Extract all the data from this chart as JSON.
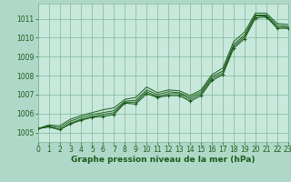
{
  "title": "Graphe pression niveau de la mer (hPa)",
  "background_color": "#b0d8c8",
  "plot_bg_color": "#c8e8dc",
  "grid_color": "#80b898",
  "line_color": "#1a5c1a",
  "xlim": [
    0,
    23
  ],
  "ylim": [
    1004.5,
    1011.8
  ],
  "xticks": [
    0,
    1,
    2,
    3,
    4,
    5,
    6,
    7,
    8,
    9,
    10,
    11,
    12,
    13,
    14,
    15,
    16,
    17,
    18,
    19,
    20,
    21,
    22,
    23
  ],
  "yticks": [
    1005,
    1006,
    1007,
    1008,
    1009,
    1010,
    1011
  ],
  "series": [
    [
      1005.2,
      1005.3,
      1005.15,
      1005.45,
      1005.65,
      1005.8,
      1005.85,
      1005.95,
      1006.55,
      1006.5,
      1007.05,
      1006.85,
      1006.95,
      1006.95,
      1006.65,
      1006.95,
      1007.75,
      1008.05,
      1009.45,
      1009.95,
      1011.05,
      1011.1,
      1010.5,
      1010.5
    ],
    [
      1005.2,
      1005.3,
      1005.15,
      1005.5,
      1005.7,
      1005.85,
      1005.95,
      1006.05,
      1006.6,
      1006.6,
      1007.15,
      1006.9,
      1007.05,
      1007.05,
      1006.75,
      1007.05,
      1007.85,
      1008.15,
      1009.55,
      1010.05,
      1011.15,
      1011.15,
      1010.55,
      1010.55
    ],
    [
      1005.2,
      1005.35,
      1005.25,
      1005.6,
      1005.8,
      1005.95,
      1006.05,
      1006.15,
      1006.65,
      1006.7,
      1007.25,
      1007.0,
      1007.15,
      1007.1,
      1006.85,
      1007.15,
      1007.95,
      1008.25,
      1009.65,
      1010.15,
      1011.2,
      1011.2,
      1010.65,
      1010.6
    ],
    [
      1005.2,
      1005.4,
      1005.35,
      1005.7,
      1005.9,
      1006.05,
      1006.2,
      1006.3,
      1006.75,
      1006.85,
      1007.4,
      1007.1,
      1007.25,
      1007.2,
      1006.95,
      1007.25,
      1008.05,
      1008.4,
      1009.8,
      1010.3,
      1011.3,
      1011.3,
      1010.75,
      1010.7
    ]
  ],
  "xlabel_fontsize": 5.5,
  "ylabel_fontsize": 5.5,
  "title_fontsize": 6.5
}
